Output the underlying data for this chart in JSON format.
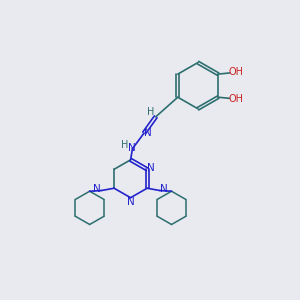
{
  "bg_color": "#e8eaf0",
  "bond_color": "#2d6e6e",
  "nitrogen_color": "#2222cc",
  "oxygen_color": "#cc2222",
  "fig_size": [
    3.0,
    3.0
  ],
  "dpi": 100,
  "xlim": [
    0,
    10
  ],
  "ylim": [
    0,
    10
  ]
}
